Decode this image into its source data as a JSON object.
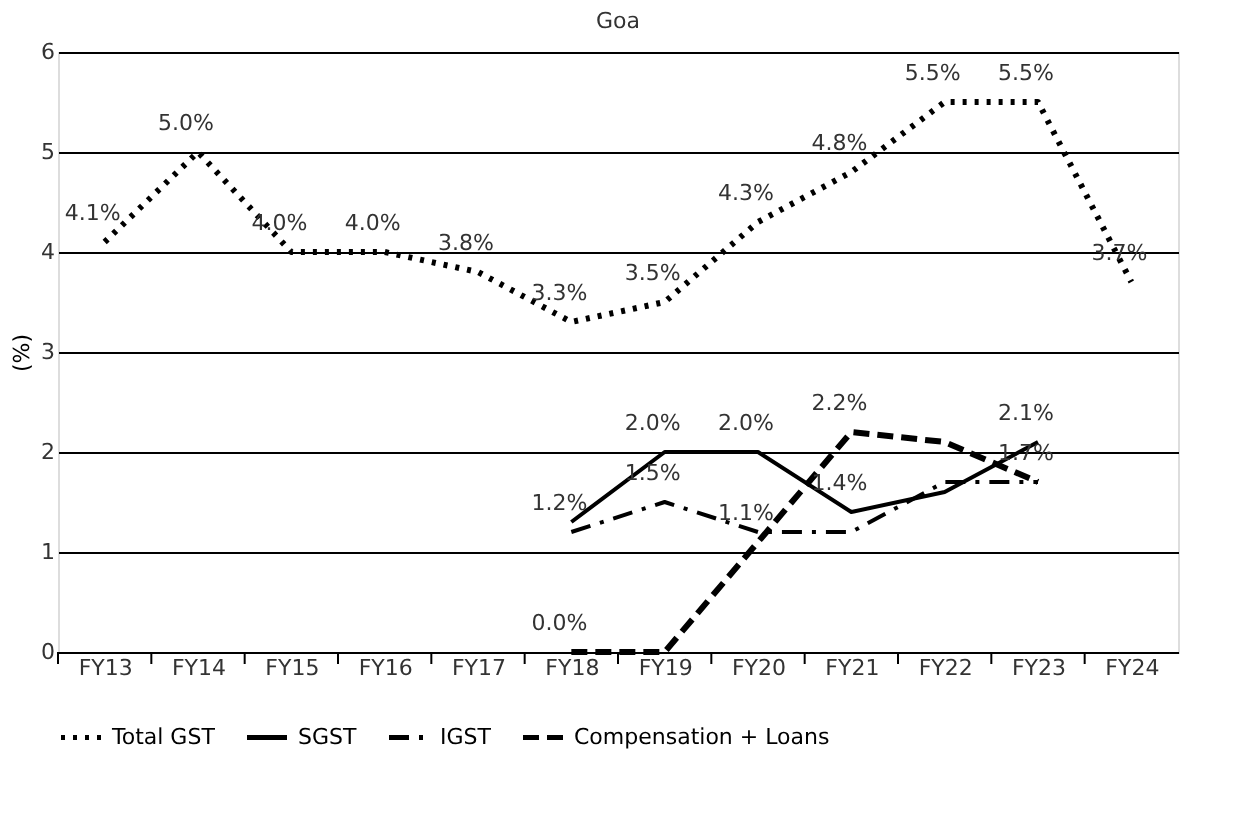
{
  "chart_data": {
    "type": "line",
    "title": "Goa",
    "ylabel": "(%)",
    "categories": [
      "FY13",
      "FY14",
      "FY15",
      "FY16",
      "FY17",
      "FY18",
      "FY19",
      "FY20",
      "FY21",
      "FY22",
      "FY23",
      "FY24"
    ],
    "series": [
      {
        "name": "Total GST",
        "color": "#000000",
        "line_style": "dotted",
        "values": [
          4.1,
          5.0,
          4.0,
          4.0,
          3.8,
          3.3,
          3.5,
          4.3,
          4.8,
          5.5,
          5.5,
          3.7
        ],
        "value_labels": [
          "4.1%",
          "5.0%",
          "4.0%",
          "4.0%",
          "3.8%",
          "3.3%",
          "3.5%",
          "4.3%",
          "4.8%",
          "5.5%",
          "5.5%",
          "3.7%"
        ]
      },
      {
        "name": "SGST",
        "color": "#000000",
        "line_style": "solid",
        "values": [
          null,
          null,
          null,
          null,
          null,
          1.3,
          2.0,
          2.0,
          1.4,
          1.6,
          2.1,
          null
        ],
        "value_labels": [
          null,
          null,
          null,
          null,
          null,
          null,
          "2.0%",
          "2.0%",
          "1.4%",
          null,
          "2.1%",
          null
        ]
      },
      {
        "name": "IGST",
        "color": "#000000",
        "line_style": "dashdot",
        "values": [
          null,
          null,
          null,
          null,
          null,
          1.2,
          1.5,
          1.2,
          1.2,
          1.7,
          1.7,
          null
        ],
        "value_labels": [
          null,
          null,
          null,
          null,
          null,
          "1.2%",
          "1.5%",
          null,
          null,
          null,
          "1.7%",
          null
        ]
      },
      {
        "name": "Compensation + Loans",
        "color": "#000000",
        "line_style": "dashed",
        "values": [
          null,
          null,
          null,
          null,
          null,
          0.0,
          0.0,
          1.1,
          2.2,
          2.1,
          1.7,
          null
        ],
        "value_labels": [
          null,
          null,
          null,
          null,
          null,
          "0.0%",
          null,
          "1.1%",
          "2.2%",
          null,
          null,
          null
        ]
      }
    ],
    "ylim": [
      0,
      6
    ],
    "yticks": [
      0,
      1,
      2,
      3,
      4,
      5,
      6
    ],
    "grid": "y",
    "legend": "bottom",
    "marker": "none"
  }
}
